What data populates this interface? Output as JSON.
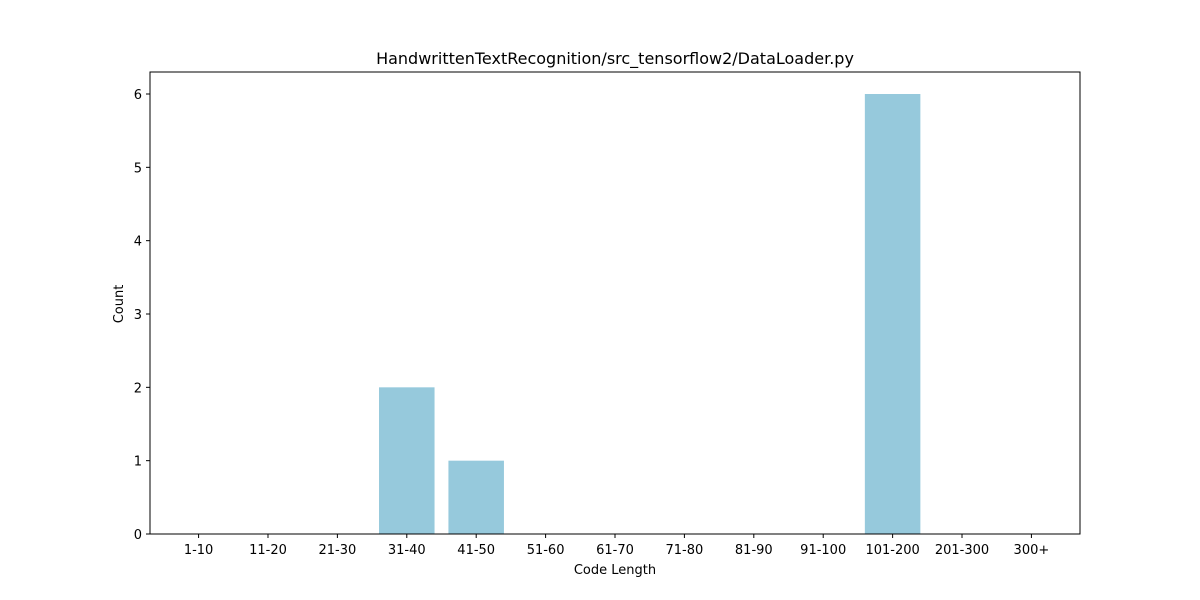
{
  "chart_data": {
    "type": "bar",
    "title": "HandwrittenTextRecognition/src_tensorflow2/DataLoader.py",
    "xlabel": "Code Length",
    "ylabel": "Count",
    "categories": [
      "1-10",
      "11-20",
      "21-30",
      "31-40",
      "41-50",
      "51-60",
      "61-70",
      "71-80",
      "81-90",
      "91-100",
      "101-200",
      "201-300",
      "300+"
    ],
    "values": [
      0,
      0,
      0,
      2,
      1,
      0,
      0,
      0,
      0,
      0,
      6,
      0,
      0
    ],
    "ylim": [
      0,
      6.3
    ],
    "yticks": [
      0,
      1,
      2,
      3,
      4,
      5,
      6
    ],
    "bar_color": "#96c9dc",
    "grid": false,
    "legend": "none"
  }
}
